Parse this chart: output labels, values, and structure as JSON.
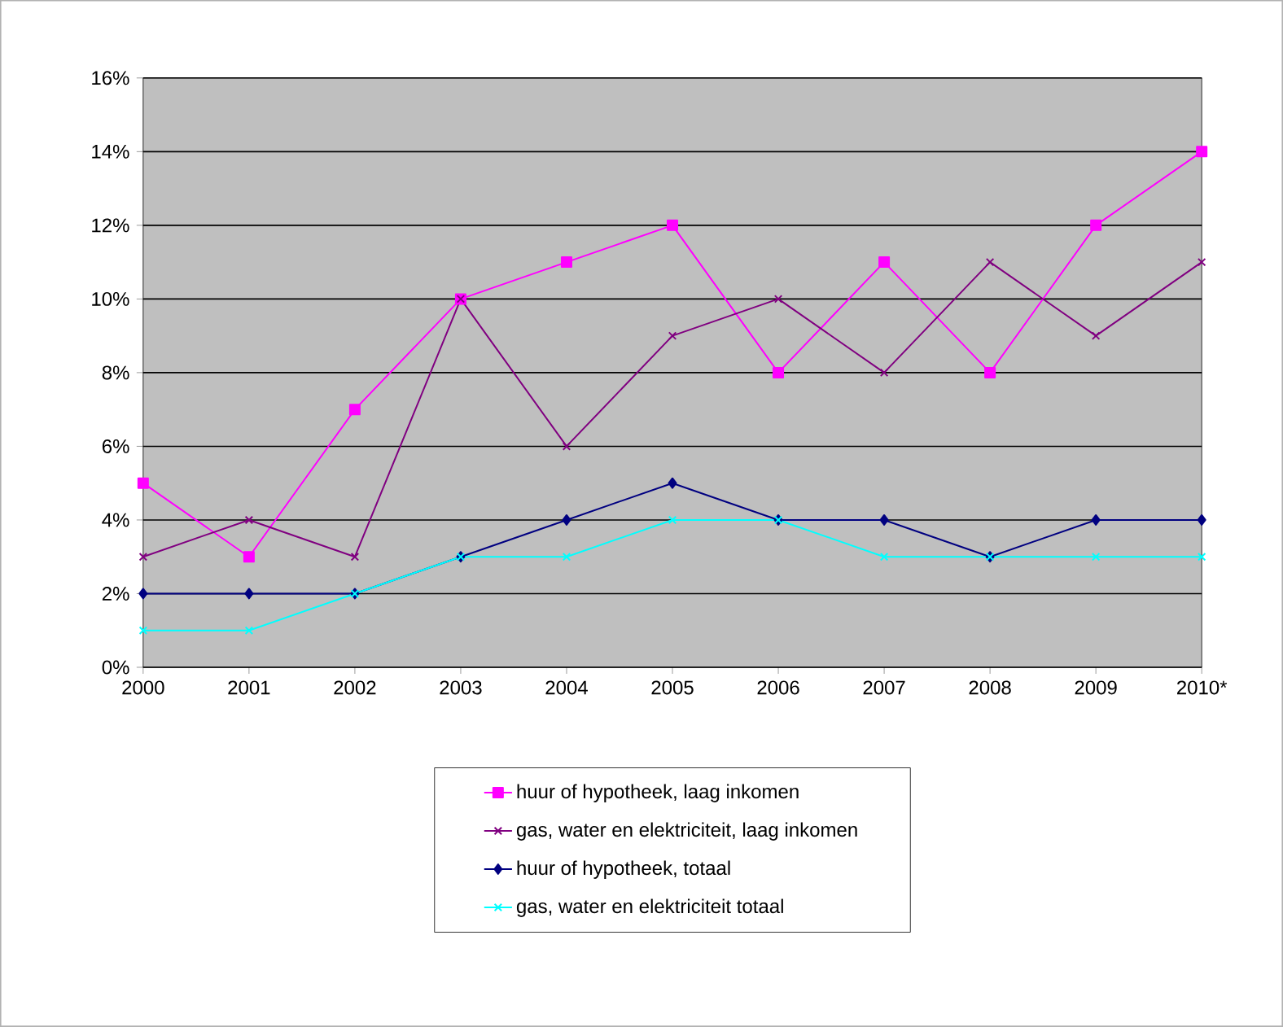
{
  "chart_data": {
    "type": "line",
    "categories": [
      "2000",
      "2001",
      "2002",
      "2003",
      "2004",
      "2005",
      "2006",
      "2007",
      "2008",
      "2009",
      "2010*"
    ],
    "series": [
      {
        "name": "huur of hypotheek, laag inkomen",
        "color": "#ff00ff",
        "marker": "square",
        "values": [
          5,
          3,
          7,
          10,
          11,
          12,
          8,
          11,
          8,
          12,
          14
        ]
      },
      {
        "name": "gas, water en elektriciteit, laag inkomen",
        "color": "#800080",
        "marker": "cross",
        "values": [
          3,
          4,
          3,
          10,
          6,
          9,
          10,
          8,
          11,
          9,
          11
        ]
      },
      {
        "name": "huur of hypotheek, totaal",
        "color": "#000080",
        "marker": "diamond",
        "values": [
          2,
          2,
          2,
          3,
          4,
          5,
          4,
          4,
          3,
          4,
          4
        ]
      },
      {
        "name": "gas, water en elektriciteit totaal",
        "color": "#00ffff",
        "marker": "cross",
        "values": [
          1,
          1,
          2,
          3,
          3,
          4,
          4,
          3,
          3,
          3,
          3
        ]
      }
    ],
    "ylim": [
      0,
      16
    ],
    "yticks": [
      {
        "value": 0,
        "label": "0%"
      },
      {
        "value": 2,
        "label": "2%"
      },
      {
        "value": 4,
        "label": "4%"
      },
      {
        "value": 6,
        "label": "6%"
      },
      {
        "value": 8,
        "label": "8%"
      },
      {
        "value": 10,
        "label": "10%"
      },
      {
        "value": 12,
        "label": "12%"
      },
      {
        "value": 14,
        "label": "14%"
      },
      {
        "value": 16,
        "label": "16%"
      }
    ],
    "grid": "y",
    "legend": "bottom",
    "line_style": "solid"
  }
}
